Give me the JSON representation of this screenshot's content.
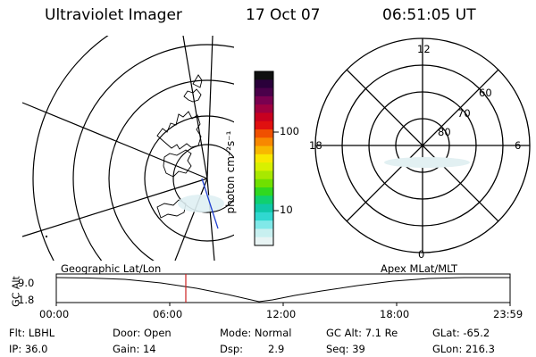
{
  "header": {
    "title": "Ultraviolet Imager",
    "date": "17 Oct 07",
    "time": "06:51:05 UT"
  },
  "colorbar": {
    "unit_label": "photon cm⁻²s⁻¹",
    "tick_labels": [
      "100",
      "10"
    ],
    "colors": [
      "#101010",
      "#2a003a",
      "#4a004a",
      "#7a0050",
      "#a00040",
      "#c80020",
      "#e01010",
      "#f05000",
      "#f88800",
      "#f8b800",
      "#f8e800",
      "#d8f000",
      "#a8e800",
      "#70e000",
      "#30d820",
      "#10d070",
      "#10c8a8",
      "#30d8d0",
      "#80e8e8",
      "#c8f0f0",
      "#e8f4f4"
    ]
  },
  "polar_plot": {
    "mlt_labels": {
      "top": "12",
      "left": "18",
      "right": "6",
      "bottom": "0"
    },
    "lat_labels": [
      "60",
      "70",
      "80"
    ]
  },
  "timeline": {
    "left_title": "Geographic Lat/Lon",
    "right_title": "Apex MLat/MLT",
    "ylabel": "GC Alt",
    "ytick_top": "9.0",
    "ytick_bottom": "1.8",
    "xticks": [
      "00:00",
      "06:00",
      "12:00",
      "18:00",
      "23:59"
    ],
    "marker_hour": 6.85,
    "marker_color": "#cc2020"
  },
  "info": {
    "flt": "Flt: LBHL",
    "door": "Door: Open",
    "mode": "Mode: Normal",
    "gcalt": "GC Alt: 7.1 Re",
    "glat": "GLat: -65.2",
    "ip": "IP: 36.0",
    "gain": "Gain: 14",
    "dsp_label": "Dsp:",
    "dsp_value": "2.9",
    "seq": "Seq: 39",
    "glon": "GLon: 216.3"
  }
}
